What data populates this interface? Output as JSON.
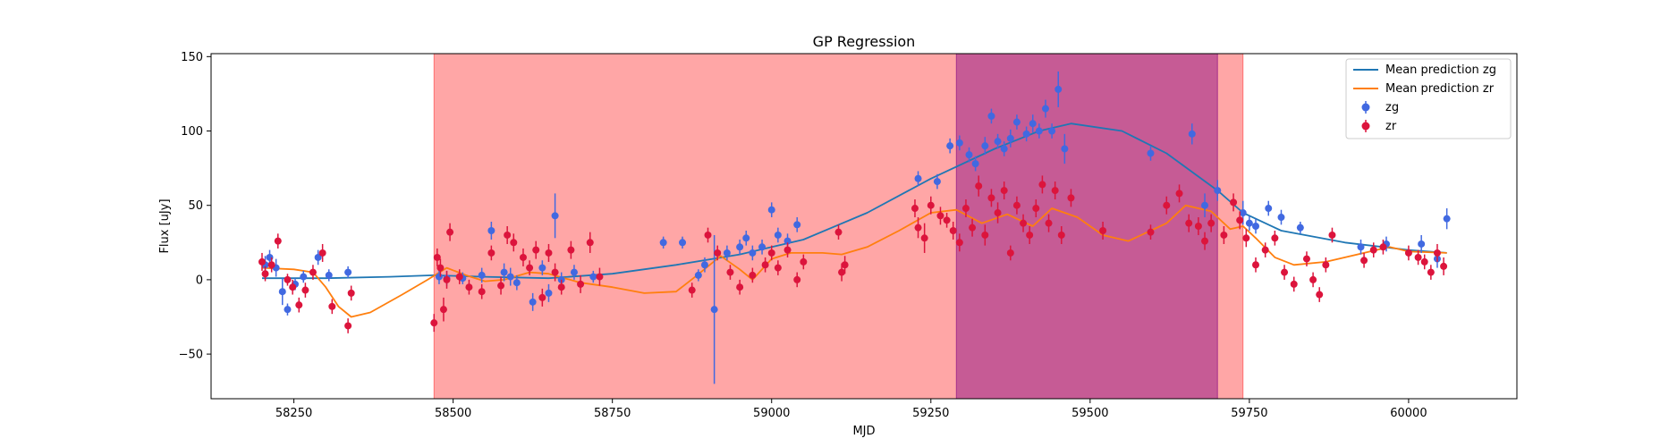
{
  "chart_data": {
    "type": "scatter",
    "title": "GP Regression",
    "xlabel": "MJD",
    "ylabel": "Flux [uJy]",
    "xlim": [
      58120,
      60170
    ],
    "ylim": [
      -80,
      152
    ],
    "xticks": [
      58250,
      58500,
      58750,
      59000,
      59250,
      59500,
      59750,
      60000
    ],
    "yticks": [
      -50,
      0,
      50,
      100,
      150
    ],
    "grid": false,
    "legend_position": "top-right",
    "spans": [
      {
        "x0": 58470,
        "x1": 59740,
        "color": "#ff0000",
        "alpha": 0.35
      },
      {
        "x0": 59290,
        "x1": 59700,
        "color": "#800080",
        "alpha": 0.45
      }
    ],
    "lines": [
      {
        "name": "Mean prediction zg",
        "color": "#1f77b4",
        "points": [
          [
            58200,
            1
          ],
          [
            58300,
            1
          ],
          [
            58400,
            2
          ],
          [
            58470,
            3
          ],
          [
            58550,
            2
          ],
          [
            58650,
            1
          ],
          [
            58750,
            4
          ],
          [
            58850,
            10
          ],
          [
            58950,
            17
          ],
          [
            59050,
            27
          ],
          [
            59150,
            45
          ],
          [
            59250,
            68
          ],
          [
            59350,
            88
          ],
          [
            59420,
            100
          ],
          [
            59470,
            105
          ],
          [
            59550,
            100
          ],
          [
            59620,
            85
          ],
          [
            59700,
            60
          ],
          [
            59740,
            45
          ],
          [
            59800,
            33
          ],
          [
            59900,
            25
          ],
          [
            60000,
            20
          ],
          [
            60060,
            18
          ]
        ]
      },
      {
        "name": "Mean prediction zr",
        "color": "#ff7f0e",
        "points": [
          [
            58200,
            8
          ],
          [
            58250,
            7
          ],
          [
            58280,
            5
          ],
          [
            58300,
            -5
          ],
          [
            58320,
            -18
          ],
          [
            58340,
            -25
          ],
          [
            58370,
            -22
          ],
          [
            58420,
            -10
          ],
          [
            58460,
            0
          ],
          [
            58490,
            8
          ],
          [
            58520,
            3
          ],
          [
            58550,
            -1
          ],
          [
            58580,
            0
          ],
          [
            58620,
            5
          ],
          [
            58650,
            4
          ],
          [
            58700,
            -2
          ],
          [
            58750,
            -5
          ],
          [
            58800,
            -9
          ],
          [
            58850,
            -8
          ],
          [
            58880,
            2
          ],
          [
            58920,
            16
          ],
          [
            58950,
            7
          ],
          [
            58970,
            0
          ],
          [
            59000,
            14
          ],
          [
            59030,
            18
          ],
          [
            59080,
            18
          ],
          [
            59110,
            17
          ],
          [
            59150,
            22
          ],
          [
            59200,
            33
          ],
          [
            59250,
            45
          ],
          [
            59290,
            47
          ],
          [
            59330,
            38
          ],
          [
            59370,
            44
          ],
          [
            59410,
            36
          ],
          [
            59440,
            48
          ],
          [
            59480,
            42
          ],
          [
            59520,
            30
          ],
          [
            59560,
            26
          ],
          [
            59620,
            38
          ],
          [
            59650,
            50
          ],
          [
            59690,
            46
          ],
          [
            59720,
            34
          ],
          [
            59740,
            36
          ],
          [
            59760,
            28
          ],
          [
            59790,
            15
          ],
          [
            59820,
            10
          ],
          [
            59870,
            12
          ],
          [
            59930,
            18
          ],
          [
            59970,
            22
          ],
          [
            60000,
            19
          ],
          [
            60060,
            18
          ]
        ]
      }
    ],
    "series": [
      {
        "name": "zg",
        "color": "#4169e1",
        "points": [
          [
            58205,
            10,
            6
          ],
          [
            58212,
            15,
            5
          ],
          [
            58222,
            8,
            6
          ],
          [
            58232,
            -8,
            9
          ],
          [
            58240,
            -20,
            4
          ],
          [
            58252,
            -3,
            4
          ],
          [
            58265,
            2,
            4
          ],
          [
            58288,
            15,
            5
          ],
          [
            58305,
            3,
            4
          ],
          [
            58335,
            5,
            4
          ],
          [
            58478,
            2,
            5
          ],
          [
            58490,
            1,
            5
          ],
          [
            58515,
            1,
            4
          ],
          [
            58545,
            3,
            5
          ],
          [
            58560,
            33,
            6
          ],
          [
            58580,
            5,
            6
          ],
          [
            58590,
            2,
            6
          ],
          [
            58600,
            -2,
            5
          ],
          [
            58625,
            -15,
            6
          ],
          [
            58640,
            8,
            5
          ],
          [
            58650,
            -9,
            6
          ],
          [
            58660,
            43,
            15
          ],
          [
            58670,
            0,
            5
          ],
          [
            58690,
            5,
            5
          ],
          [
            58720,
            2,
            4
          ],
          [
            58830,
            25,
            4
          ],
          [
            58860,
            25,
            4
          ],
          [
            58885,
            3,
            4
          ],
          [
            58895,
            10,
            5
          ],
          [
            58910,
            -20,
            50
          ],
          [
            58930,
            18,
            5
          ],
          [
            58950,
            22,
            5
          ],
          [
            58960,
            28,
            5
          ],
          [
            58970,
            18,
            5
          ],
          [
            58985,
            22,
            5
          ],
          [
            59000,
            47,
            5
          ],
          [
            59010,
            30,
            5
          ],
          [
            59025,
            26,
            5
          ],
          [
            59040,
            37,
            5
          ],
          [
            59230,
            68,
            5
          ],
          [
            59260,
            66,
            5
          ],
          [
            59280,
            90,
            5
          ],
          [
            59295,
            92,
            5
          ],
          [
            59310,
            84,
            5
          ],
          [
            59320,
            78,
            5
          ],
          [
            59335,
            90,
            6
          ],
          [
            59345,
            110,
            5
          ],
          [
            59355,
            93,
            5
          ],
          [
            59365,
            88,
            5
          ],
          [
            59375,
            95,
            6
          ],
          [
            59385,
            106,
            5
          ],
          [
            59400,
            98,
            5
          ],
          [
            59410,
            105,
            6
          ],
          [
            59420,
            100,
            5
          ],
          [
            59430,
            115,
            6
          ],
          [
            59440,
            100,
            5
          ],
          [
            59450,
            128,
            12
          ],
          [
            59460,
            88,
            10
          ],
          [
            59595,
            85,
            5
          ],
          [
            59660,
            98,
            7
          ],
          [
            59680,
            50,
            8
          ],
          [
            59700,
            60,
            7
          ],
          [
            59740,
            45,
            8
          ],
          [
            59750,
            38,
            5
          ],
          [
            59760,
            36,
            5
          ],
          [
            59780,
            48,
            5
          ],
          [
            59800,
            42,
            5
          ],
          [
            59830,
            35,
            4
          ],
          [
            59925,
            22,
            5
          ],
          [
            59965,
            24,
            5
          ],
          [
            60020,
            24,
            6
          ],
          [
            60045,
            14,
            6
          ],
          [
            60060,
            41,
            7
          ]
        ]
      },
      {
        "name": "zr",
        "color": "#dc143c",
        "points": [
          [
            58200,
            12,
            6
          ],
          [
            58205,
            4,
            5
          ],
          [
            58215,
            10,
            5
          ],
          [
            58225,
            26,
            5
          ],
          [
            58240,
            0,
            4
          ],
          [
            58248,
            -5,
            5
          ],
          [
            58258,
            -17,
            5
          ],
          [
            58268,
            -7,
            5
          ],
          [
            58280,
            5,
            5
          ],
          [
            58295,
            18,
            6
          ],
          [
            58310,
            -18,
            5
          ],
          [
            58335,
            -31,
            5
          ],
          [
            58340,
            -9,
            5
          ],
          [
            58470,
            -29,
            6
          ],
          [
            58475,
            15,
            6
          ],
          [
            58480,
            8,
            6
          ],
          [
            58485,
            -20,
            8
          ],
          [
            58490,
            0,
            6
          ],
          [
            58495,
            32,
            6
          ],
          [
            58510,
            2,
            5
          ],
          [
            58525,
            -5,
            5
          ],
          [
            58545,
            -8,
            5
          ],
          [
            58560,
            18,
            5
          ],
          [
            58575,
            -4,
            6
          ],
          [
            58585,
            30,
            6
          ],
          [
            58595,
            25,
            6
          ],
          [
            58610,
            15,
            6
          ],
          [
            58620,
            8,
            5
          ],
          [
            58630,
            20,
            6
          ],
          [
            58640,
            -12,
            6
          ],
          [
            58650,
            18,
            6
          ],
          [
            58660,
            5,
            6
          ],
          [
            58670,
            -5,
            5
          ],
          [
            58685,
            20,
            6
          ],
          [
            58700,
            -3,
            6
          ],
          [
            58715,
            25,
            7
          ],
          [
            58730,
            2,
            6
          ],
          [
            58875,
            -7,
            5
          ],
          [
            58900,
            30,
            5
          ],
          [
            58915,
            18,
            5
          ],
          [
            58935,
            5,
            5
          ],
          [
            58950,
            -5,
            5
          ],
          [
            58970,
            3,
            5
          ],
          [
            58990,
            10,
            5
          ],
          [
            59000,
            18,
            5
          ],
          [
            59010,
            8,
            5
          ],
          [
            59025,
            20,
            5
          ],
          [
            59040,
            0,
            5
          ],
          [
            59050,
            12,
            5
          ],
          [
            59105,
            32,
            5
          ],
          [
            59110,
            5,
            6
          ],
          [
            59115,
            10,
            6
          ],
          [
            59225,
            48,
            6
          ],
          [
            59230,
            35,
            7
          ],
          [
            59240,
            28,
            10
          ],
          [
            59250,
            50,
            6
          ],
          [
            59265,
            43,
            6
          ],
          [
            59275,
            40,
            5
          ],
          [
            59285,
            33,
            6
          ],
          [
            59295,
            25,
            6
          ],
          [
            59305,
            48,
            6
          ],
          [
            59315,
            35,
            6
          ],
          [
            59325,
            63,
            7
          ],
          [
            59335,
            30,
            7
          ],
          [
            59345,
            55,
            6
          ],
          [
            59355,
            45,
            7
          ],
          [
            59365,
            60,
            6
          ],
          [
            59375,
            18,
            5
          ],
          [
            59385,
            50,
            6
          ],
          [
            59395,
            38,
            6
          ],
          [
            59405,
            30,
            6
          ],
          [
            59415,
            48,
            6
          ],
          [
            59425,
            64,
            6
          ],
          [
            59435,
            38,
            6
          ],
          [
            59445,
            60,
            6
          ],
          [
            59455,
            30,
            6
          ],
          [
            59470,
            55,
            6
          ],
          [
            59520,
            33,
            6
          ],
          [
            59595,
            32,
            5
          ],
          [
            59620,
            50,
            6
          ],
          [
            59640,
            58,
            6
          ],
          [
            59655,
            38,
            6
          ],
          [
            59670,
            36,
            6
          ],
          [
            59680,
            26,
            6
          ],
          [
            59690,
            38,
            6
          ],
          [
            59710,
            30,
            6
          ],
          [
            59725,
            52,
            6
          ],
          [
            59735,
            40,
            6
          ],
          [
            59745,
            28,
            6
          ],
          [
            59760,
            10,
            5
          ],
          [
            59775,
            20,
            5
          ],
          [
            59790,
            28,
            5
          ],
          [
            59805,
            5,
            5
          ],
          [
            59820,
            -3,
            5
          ],
          [
            59840,
            14,
            5
          ],
          [
            59850,
            0,
            5
          ],
          [
            59860,
            -10,
            5
          ],
          [
            59870,
            10,
            5
          ],
          [
            59880,
            30,
            5
          ],
          [
            59930,
            13,
            5
          ],
          [
            59945,
            20,
            5
          ],
          [
            59960,
            22,
            5
          ],
          [
            60000,
            18,
            5
          ],
          [
            60015,
            15,
            5
          ],
          [
            60025,
            12,
            5
          ],
          [
            60035,
            5,
            5
          ],
          [
            60045,
            18,
            6
          ],
          [
            60055,
            9,
            6
          ]
        ]
      }
    ]
  }
}
